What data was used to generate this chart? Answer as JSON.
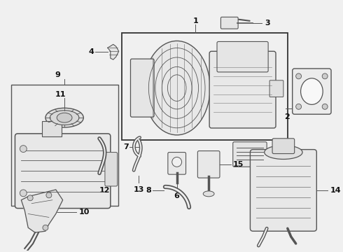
{
  "background_color": "#f0f0f0",
  "line_color": "#555555",
  "border_color": "#333333",
  "text_color": "#111111",
  "fig_width": 4.9,
  "fig_height": 3.6,
  "dpi": 100
}
